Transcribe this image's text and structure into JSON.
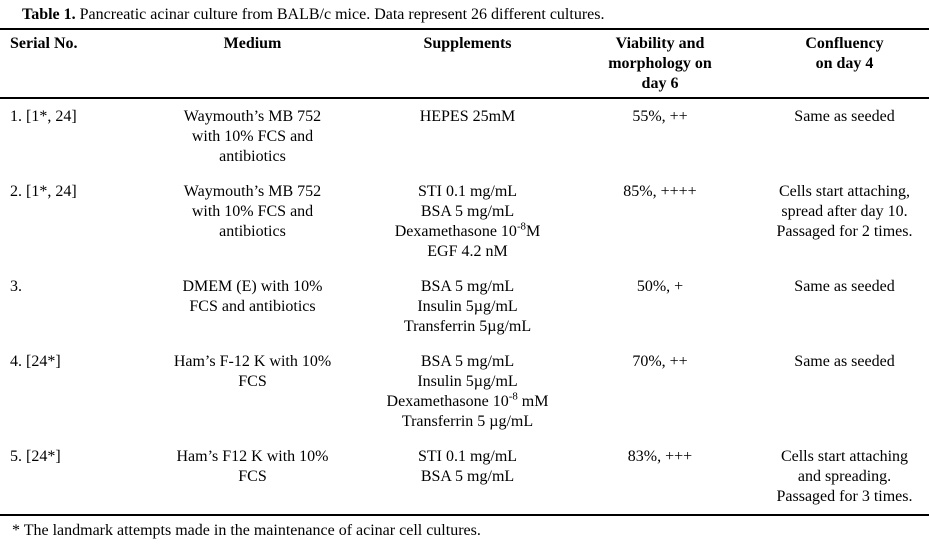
{
  "colors": {
    "background": "#ffffff",
    "text": "#000000",
    "rule": "#000000"
  },
  "caption": {
    "label": "Table 1.",
    "text": " Pancreatic acinar culture from BALB/c mice. Data represent 26 different cultures."
  },
  "table": {
    "headers": [
      {
        "lines": [
          "Serial No."
        ]
      },
      {
        "lines": [
          "Medium"
        ]
      },
      {
        "lines": [
          "Supplements"
        ]
      },
      {
        "lines": [
          "Viability and",
          "morphology on",
          "day 6"
        ]
      },
      {
        "lines": [
          "Confluency",
          "on day 4"
        ]
      }
    ],
    "rows": [
      {
        "serial": "1. [1*, 24]",
        "medium": [
          "Waymouth’s MB 752",
          "with 10% FCS and",
          "antibiotics"
        ],
        "supplements": [
          "HEPES 25mM"
        ],
        "viability": "55%, ++",
        "confluency": [
          "Same as seeded"
        ]
      },
      {
        "serial": "2. [1*, 24]",
        "medium": [
          "Waymouth’s MB 752",
          "with 10% FCS and",
          "antibiotics"
        ],
        "supplements": [
          "STI 0.1 mg/mL",
          "BSA 5 mg/mL",
          "Dexamethasone 10^{-8}M",
          "EGF 4.2 nM"
        ],
        "viability": "85%, ++++",
        "confluency": [
          "Cells start attaching,",
          "spread after day 10.",
          "Passaged for 2 times."
        ]
      },
      {
        "serial": "3.",
        "medium": [
          "DMEM (E) with 10%",
          "FCS and antibiotics"
        ],
        "supplements": [
          "BSA 5 mg/mL",
          "Insulin 5µg/mL",
          "Transferrin 5µg/mL"
        ],
        "viability": "50%, +",
        "confluency": [
          "Same as seeded"
        ]
      },
      {
        "serial": "4. [24*]",
        "medium": [
          "Ham’s F-12 K with 10%",
          "FCS"
        ],
        "supplements": [
          "BSA 5 mg/mL",
          "Insulin 5µg/mL",
          "Dexamethasone 10^{-8} mM",
          "Transferrin 5 µg/mL"
        ],
        "viability": "70%, ++",
        "confluency": [
          "Same as seeded"
        ]
      },
      {
        "serial": "5. [24*]",
        "medium": [
          "Ham’s F12 K with 10%",
          "FCS"
        ],
        "supplements": [
          "STI 0.1 mg/mL",
          "BSA 5 mg/mL"
        ],
        "viability": "83%, +++",
        "confluency": [
          "Cells start attaching",
          "and spreading.",
          "Passaged for 3 times."
        ]
      }
    ]
  },
  "footnote": "* The landmark attempts made in the maintenance of acinar cell cultures."
}
